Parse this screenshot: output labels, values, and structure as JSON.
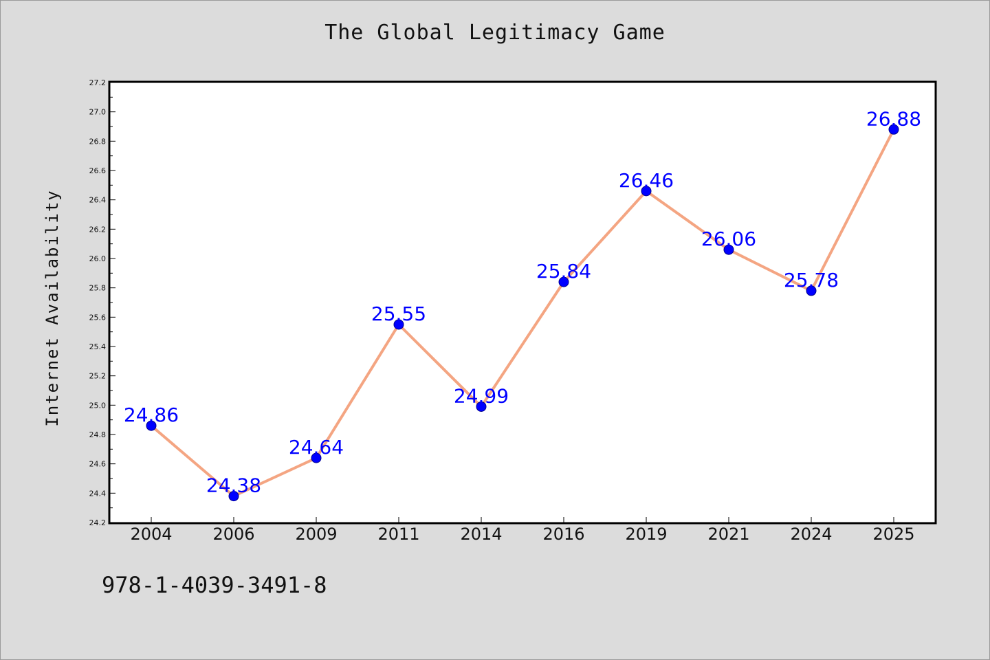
{
  "chart_data": {
    "type": "line",
    "title": "The Global Legitimacy Game",
    "xlabel": "",
    "ylabel": "Internet Availability",
    "categories": [
      "2004",
      "2006",
      "2009",
      "2011",
      "2014",
      "2016",
      "2019",
      "2021",
      "2024",
      "2025"
    ],
    "series": [
      {
        "values": [
          24.86,
          24.38,
          24.64,
          25.55,
          24.99,
          25.84,
          26.46,
          26.06,
          25.78,
          26.88
        ]
      }
    ],
    "data_labels": [
      "24.86",
      "24.38",
      "24.64",
      "25.55",
      "24.99",
      "25.84",
      "26.46",
      "26.06",
      "25.78",
      "26.88"
    ],
    "ylim": [
      24.2,
      27.2
    ],
    "yticks": [
      "24.2",
      "24.4",
      "24.6",
      "24.8",
      "25.0",
      "25.2",
      "25.4",
      "25.6",
      "25.8",
      "26.0",
      "26.2",
      "26.4",
      "26.6",
      "26.8",
      "27.0",
      "27.2"
    ],
    "grid": false,
    "legend": "none",
    "line_color": "#f4a582",
    "marker_color": "#0000ff",
    "label_color": "#0000ff"
  },
  "footer": {
    "isbn": "978-1-4039-3491-8"
  }
}
